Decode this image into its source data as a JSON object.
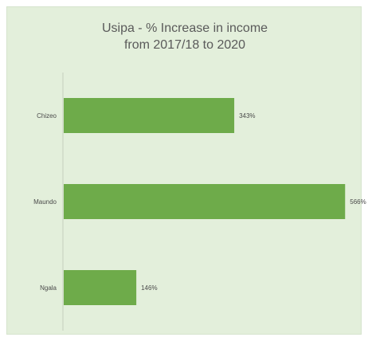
{
  "chart_data": {
    "type": "bar",
    "orientation": "horizontal",
    "title_lines": [
      "Usipa - % Increase in income",
      "from 2017/18 to 2020"
    ],
    "categories": [
      "Chizeo",
      "Maundo",
      "Ngala"
    ],
    "values": [
      343,
      566,
      146
    ],
    "value_labels": [
      "343%",
      "566%",
      "146%"
    ],
    "xlim": [
      0,
      580
    ],
    "grid": false,
    "legend": "none",
    "colors": {
      "bar": "#6eab4a",
      "background": "#e3efdb",
      "axis": "#c4cfbd",
      "text": "#4a4a4a",
      "title": "#5a5a5a"
    }
  }
}
